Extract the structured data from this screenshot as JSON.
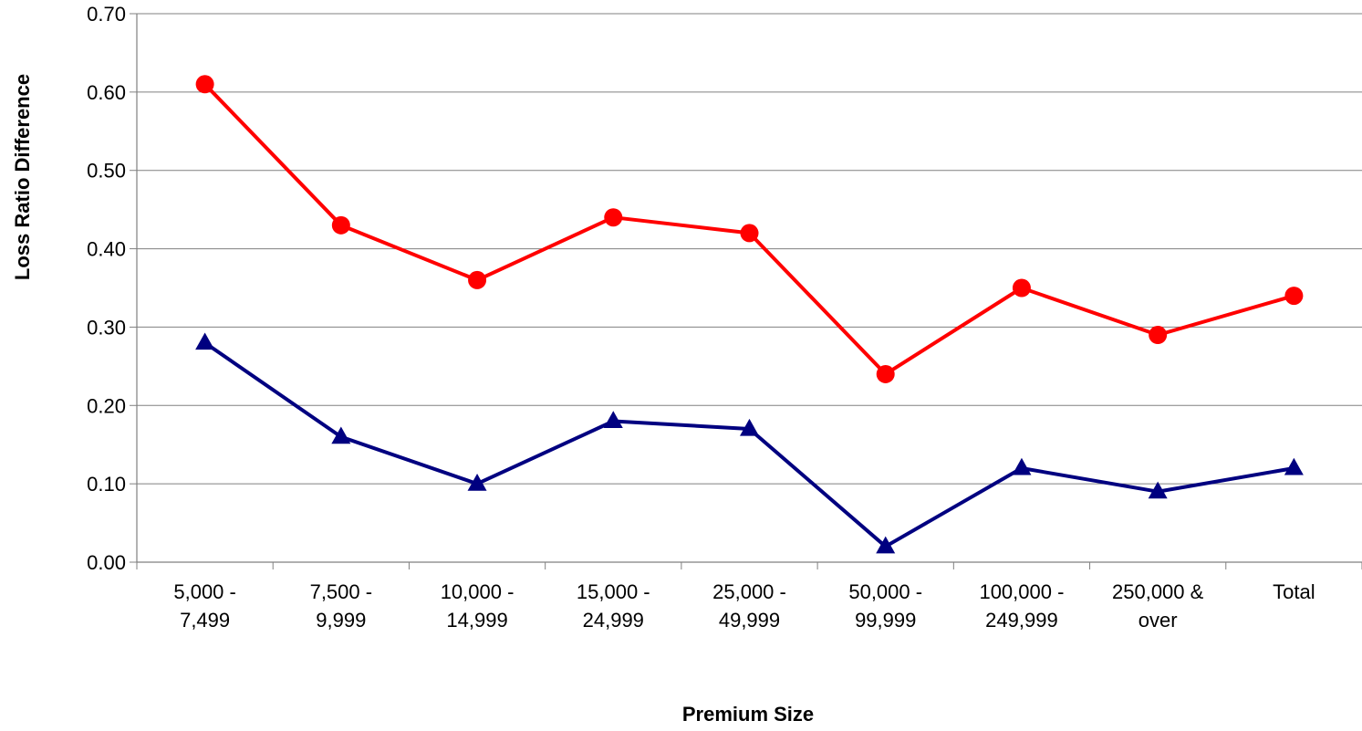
{
  "chart_data": {
    "type": "line",
    "title": "",
    "xlabel": "Premium Size",
    "ylabel": "Loss Ratio Difference",
    "ylim": [
      0,
      0.7
    ],
    "y_ticks": [
      "0.00",
      "0.10",
      "0.20",
      "0.30",
      "0.40",
      "0.50",
      "0.60",
      "0.70"
    ],
    "grid": true,
    "legend": "none",
    "categories": [
      [
        "5,000 -",
        "7,499"
      ],
      [
        "7,500 -",
        "9,999"
      ],
      [
        "10,000 -",
        "14,999"
      ],
      [
        "15,000 -",
        "24,999"
      ],
      [
        "25,000 -",
        "49,999"
      ],
      [
        "50,000 -",
        "99,999"
      ],
      [
        "100,000 -",
        "249,999"
      ],
      [
        "250,000 &",
        "over"
      ],
      [
        "Total"
      ]
    ],
    "series": [
      {
        "color": "#ff0000",
        "marker": "circle",
        "values": [
          0.61,
          0.43,
          0.36,
          0.44,
          0.42,
          0.24,
          0.35,
          0.29,
          0.34
        ]
      },
      {
        "color": "#000080",
        "marker": "triangle",
        "values": [
          0.28,
          0.16,
          0.1,
          0.18,
          0.17,
          0.02,
          0.12,
          0.09,
          0.12
        ]
      }
    ]
  }
}
